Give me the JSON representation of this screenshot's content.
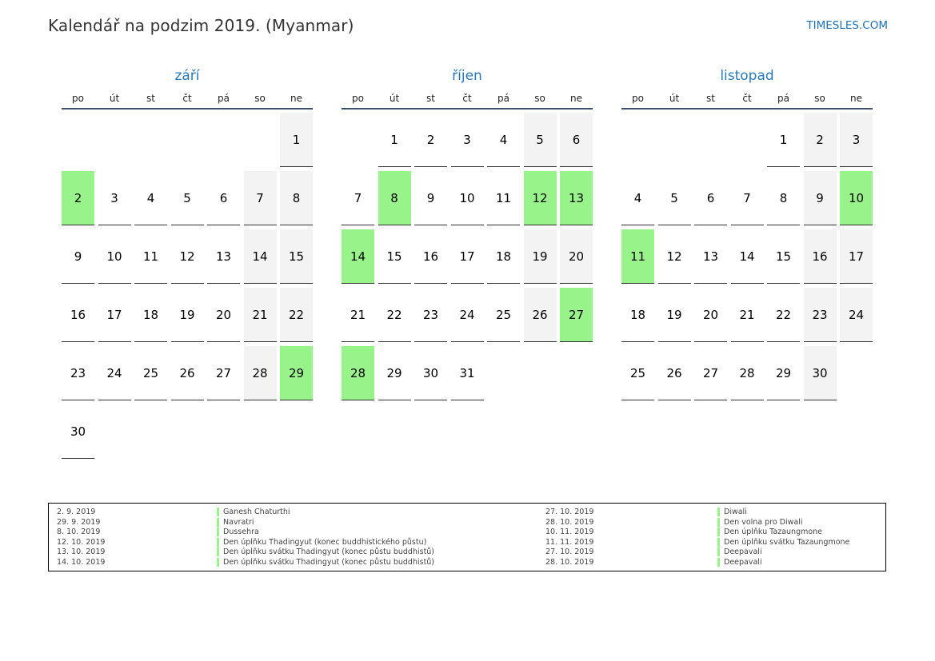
{
  "title": "Kalendář na podzim 2019. (Myanmar)",
  "site": "TIMESLES.COM",
  "weekday_labels": [
    "po",
    "út",
    "st",
    "čt",
    "pá",
    "so",
    "ne"
  ],
  "colors": {
    "holiday": "#98f38a",
    "weekend": "#f3f3f3",
    "month_title": "#2a78b8"
  },
  "months": [
    {
      "name": "září",
      "weeks": [
        [
          "",
          "",
          "",
          "",
          "",
          "",
          "1"
        ],
        [
          "2",
          "3",
          "4",
          "5",
          "6",
          "7",
          "8"
        ],
        [
          "9",
          "10",
          "11",
          "12",
          "13",
          "14",
          "15"
        ],
        [
          "16",
          "17",
          "18",
          "19",
          "20",
          "21",
          "22"
        ],
        [
          "23",
          "24",
          "25",
          "26",
          "27",
          "28",
          "29"
        ],
        [
          "30",
          "",
          "",
          "",
          "",
          "",
          ""
        ]
      ],
      "holidays": [
        "2",
        "29"
      ]
    },
    {
      "name": "říjen",
      "weeks": [
        [
          "",
          "1",
          "2",
          "3",
          "4",
          "5",
          "6"
        ],
        [
          "7",
          "8",
          "9",
          "10",
          "11",
          "12",
          "13"
        ],
        [
          "14",
          "15",
          "16",
          "17",
          "18",
          "19",
          "20"
        ],
        [
          "21",
          "22",
          "23",
          "24",
          "25",
          "26",
          "27"
        ],
        [
          "28",
          "29",
          "30",
          "31",
          "",
          "",
          ""
        ]
      ],
      "holidays": [
        "8",
        "12",
        "13",
        "14",
        "27",
        "28"
      ]
    },
    {
      "name": "listopad",
      "weeks": [
        [
          "",
          "",
          "",
          "",
          "1",
          "2",
          "3"
        ],
        [
          "4",
          "5",
          "6",
          "7",
          "8",
          "9",
          "10"
        ],
        [
          "11",
          "12",
          "13",
          "14",
          "15",
          "16",
          "17"
        ],
        [
          "18",
          "19",
          "20",
          "21",
          "22",
          "23",
          "24"
        ],
        [
          "25",
          "26",
          "27",
          "28",
          "29",
          "30",
          ""
        ]
      ],
      "holidays": [
        "10",
        "11"
      ]
    }
  ],
  "legend": {
    "left": [
      {
        "date": "2. 9. 2019",
        "name": "Ganesh Chaturthi"
      },
      {
        "date": "29. 9. 2019",
        "name": "Navratri"
      },
      {
        "date": "8. 10. 2019",
        "name": "Dussehra"
      },
      {
        "date": "12. 10. 2019",
        "name": "Den úplňku Thadingyut (konec buddhistického půstu)"
      },
      {
        "date": "13. 10. 2019",
        "name": "Den úplňku svátku Thadingyut (konec půstu buddhistů)"
      },
      {
        "date": "14. 10. 2019",
        "name": "Den úplňku svátku Thadingyut (konec půstu buddhistů)"
      }
    ],
    "right": [
      {
        "date": "27. 10. 2019",
        "name": "Diwali"
      },
      {
        "date": "28. 10. 2019",
        "name": "Den volna pro Diwali"
      },
      {
        "date": "10. 11. 2019",
        "name": "Den úplňku Tazaungmone"
      },
      {
        "date": "11. 11. 2019",
        "name": "Den úplňku svátku Tazaungmone"
      },
      {
        "date": "27. 10. 2019",
        "name": "Deepavali"
      },
      {
        "date": "28. 10. 2019",
        "name": "Deepavali"
      }
    ]
  }
}
